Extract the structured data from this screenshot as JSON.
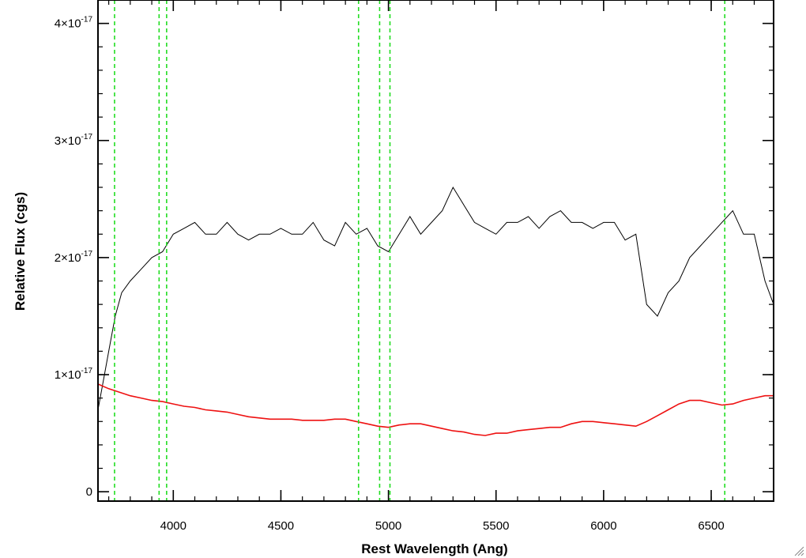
{
  "chart_data": {
    "type": "line",
    "title": "",
    "xlabel": "Rest Wavelength (Ang)",
    "ylabel": "Relative Flux (cgs)",
    "xlim": [
      3650,
      6790
    ],
    "ylim": [
      -8e-19,
      4.2e-17
    ],
    "x_ticks": [
      {
        "value": 4000,
        "label": "4000"
      },
      {
        "value": 4500,
        "label": "4500"
      },
      {
        "value": 5000,
        "label": "5000"
      },
      {
        "value": 5500,
        "label": "5500"
      },
      {
        "value": 6000,
        "label": "6000"
      },
      {
        "value": 6500,
        "label": "6500"
      }
    ],
    "y_ticks": [
      {
        "value": 0,
        "mantissa": "0",
        "exponent": ""
      },
      {
        "value": 1e-17,
        "mantissa": "1×10",
        "exponent": "-17"
      },
      {
        "value": 2e-17,
        "mantissa": "2×10",
        "exponent": "-17"
      },
      {
        "value": 3e-17,
        "mantissa": "3×10",
        "exponent": "-17"
      },
      {
        "value": 4e-17,
        "mantissa": "4×10",
        "exponent": "-17"
      }
    ],
    "grid": false,
    "legend": "none",
    "series": [
      {
        "color": "#000000",
        "style": "solid",
        "x": [
          3650,
          3680,
          3700,
          3730,
          3760,
          3800,
          3850,
          3900,
          3950,
          4000,
          4050,
          4100,
          4150,
          4200,
          4250,
          4300,
          4350,
          4400,
          4450,
          4500,
          4550,
          4600,
          4650,
          4700,
          4750,
          4800,
          4850,
          4900,
          4950,
          5000,
          5050,
          5100,
          5150,
          5200,
          5250,
          5300,
          5350,
          5400,
          5450,
          5500,
          5550,
          5600,
          5650,
          5700,
          5750,
          5800,
          5850,
          5900,
          5950,
          6000,
          6050,
          6100,
          6150,
          6200,
          6250,
          6300,
          6350,
          6400,
          6450,
          6500,
          6550,
          6600,
          6650,
          6700,
          6750,
          6790
        ],
        "y": [
          7e-18,
          1e-17,
          1.2e-17,
          1.5e-17,
          1.7e-17,
          1.8e-17,
          1.9e-17,
          2e-17,
          2.05e-17,
          2.2e-17,
          2.25e-17,
          2.3e-17,
          2.2e-17,
          2.2e-17,
          2.3e-17,
          2.2e-17,
          2.15e-17,
          2.2e-17,
          2.2e-17,
          2.25e-17,
          2.2e-17,
          2.2e-17,
          2.3e-17,
          2.15e-17,
          2.1e-17,
          2.3e-17,
          2.2e-17,
          2.25e-17,
          2.1e-17,
          2.05e-17,
          2.2e-17,
          2.35e-17,
          2.2e-17,
          2.3e-17,
          2.4e-17,
          2.6e-17,
          2.45e-17,
          2.3e-17,
          2.25e-17,
          2.2e-17,
          2.3e-17,
          2.3e-17,
          2.35e-17,
          2.25e-17,
          2.35e-17,
          2.4e-17,
          2.3e-17,
          2.3e-17,
          2.25e-17,
          2.3e-17,
          2.3e-17,
          2.15e-17,
          2.2e-17,
          1.6e-17,
          1.5e-17,
          1.7e-17,
          1.8e-17,
          2e-17,
          2.1e-17,
          2.2e-17,
          2.3e-17,
          2.4e-17,
          2.2e-17,
          2.2e-17,
          1.8e-17,
          1.6e-17
        ]
      },
      {
        "color": "#ee1111",
        "style": "solid",
        "x": [
          3650,
          3700,
          3750,
          3800,
          3850,
          3900,
          3950,
          4000,
          4050,
          4100,
          4150,
          4200,
          4250,
          4300,
          4350,
          4400,
          4450,
          4500,
          4550,
          4600,
          4650,
          4700,
          4750,
          4800,
          4850,
          4900,
          4950,
          5000,
          5050,
          5100,
          5150,
          5200,
          5250,
          5300,
          5350,
          5400,
          5450,
          5500,
          5550,
          5600,
          5650,
          5700,
          5750,
          5800,
          5850,
          5900,
          5950,
          6000,
          6050,
          6100,
          6150,
          6200,
          6250,
          6300,
          6350,
          6400,
          6450,
          6500,
          6550,
          6600,
          6650,
          6700,
          6750,
          6790
        ],
        "y": [
          9.2e-18,
          8.8e-18,
          8.5e-18,
          8.2e-18,
          8e-18,
          7.8e-18,
          7.7e-18,
          7.5e-18,
          7.3e-18,
          7.2e-18,
          7e-18,
          6.9e-18,
          6.8e-18,
          6.6e-18,
          6.4e-18,
          6.3e-18,
          6.2e-18,
          6.2e-18,
          6.2e-18,
          6.1e-18,
          6.1e-18,
          6.1e-18,
          6.2e-18,
          6.2e-18,
          6e-18,
          5.8e-18,
          5.6e-18,
          5.5e-18,
          5.7e-18,
          5.8e-18,
          5.8e-18,
          5.6e-18,
          5.4e-18,
          5.2e-18,
          5.1e-18,
          4.9e-18,
          4.8e-18,
          5e-18,
          5e-18,
          5.2e-18,
          5.3e-18,
          5.4e-18,
          5.5e-18,
          5.5e-18,
          5.8e-18,
          6e-18,
          6e-18,
          5.9e-18,
          5.8e-18,
          5.7e-18,
          5.6e-18,
          6e-18,
          6.5e-18,
          7e-18,
          7.5e-18,
          7.8e-18,
          7.8e-18,
          7.6e-18,
          7.4e-18,
          7.5e-18,
          7.8e-18,
          8e-18,
          8.2e-18,
          8.2e-18
        ]
      }
    ],
    "vertical_markers": [
      {
        "x": 3727,
        "color": "#22dd22",
        "style": "dashed"
      },
      {
        "x": 3934,
        "color": "#22dd22",
        "style": "dashed"
      },
      {
        "x": 3969,
        "color": "#22dd22",
        "style": "dashed"
      },
      {
        "x": 4861,
        "color": "#22dd22",
        "style": "dashed"
      },
      {
        "x": 4959,
        "color": "#22dd22",
        "style": "dashed"
      },
      {
        "x": 5007,
        "color": "#22dd22",
        "style": "dashed"
      },
      {
        "x": 6563,
        "color": "#22dd22",
        "style": "dashed"
      }
    ],
    "colors": {
      "axis": "#000000",
      "spectrum": "#000000",
      "model": "#ee1111",
      "marker": "#22dd22"
    }
  }
}
